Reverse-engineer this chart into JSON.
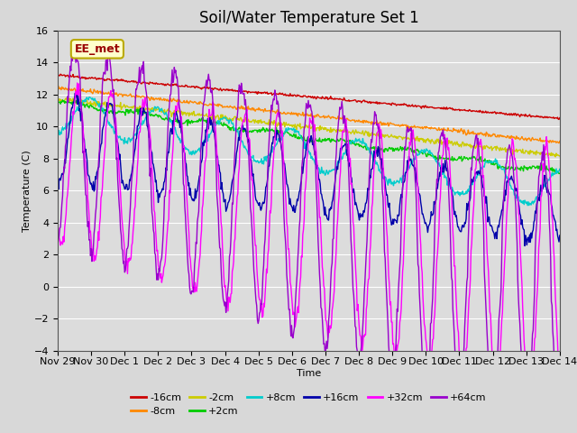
{
  "title": "Soil/Water Temperature Set 1",
  "xlabel": "Time",
  "ylabel": "Temperature (C)",
  "ylim": [
    -4,
    16
  ],
  "yticks": [
    -4,
    -2,
    0,
    2,
    4,
    6,
    8,
    10,
    12,
    14,
    16
  ],
  "background_color": "#d8d8d8",
  "plot_bg_color": "#dcdcdc",
  "annotation_text": "EE_met",
  "annotation_bg": "#ffffcc",
  "annotation_border": "#bbaa00",
  "series": [
    {
      "label": "-16cm",
      "color": "#cc0000"
    },
    {
      "label": "-8cm",
      "color": "#ff8800"
    },
    {
      "label": "-2cm",
      "color": "#cccc00"
    },
    {
      "label": "+2cm",
      "color": "#00cc00"
    },
    {
      "label": "+8cm",
      "color": "#00cccc"
    },
    {
      "label": "+16cm",
      "color": "#0000aa"
    },
    {
      "label": "+32cm",
      "color": "#ff00ff"
    },
    {
      "label": "+64cm",
      "color": "#9900cc"
    }
  ],
  "n_points": 720,
  "x_start": 0,
  "x_end": 15,
  "xtick_positions": [
    0,
    1,
    2,
    3,
    4,
    5,
    6,
    7,
    8,
    9,
    10,
    11,
    12,
    13,
    14,
    15
  ],
  "xtick_labels": [
    "Nov 29",
    "Nov 30",
    "Dec 1",
    "Dec 2",
    "Dec 3",
    "Dec 4",
    "Dec 5",
    "Dec 6",
    "Dec 7",
    "Dec 8",
    "Dec 9",
    "Dec 10",
    "Dec 11",
    "Dec 12",
    "Dec 13",
    "Dec 14"
  ],
  "grid_color": "#ffffff",
  "title_fontsize": 12,
  "axis_fontsize": 8,
  "legend_fontsize": 8
}
